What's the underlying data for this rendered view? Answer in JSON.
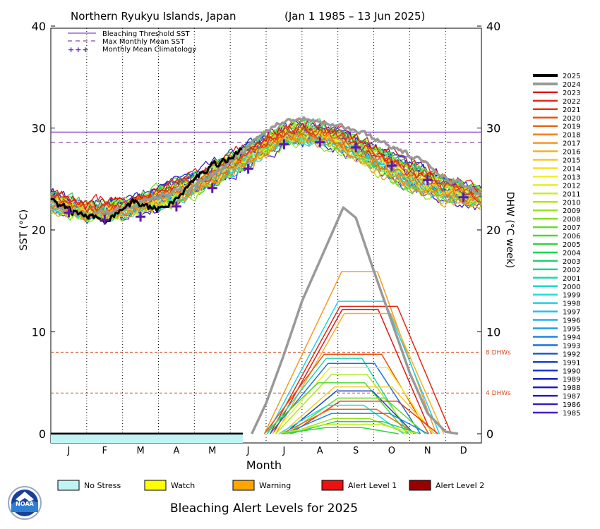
{
  "header": {
    "location": "Northern Ryukyu Islands, Japan",
    "range": "(Jan 1 1985 – 13 Jun 2025)"
  },
  "legend_top": {
    "threshold": "Bleaching Threshold SST",
    "mmm": "Max Monthly Mean SST",
    "climatology": "Monthly Mean Climatology",
    "climatology_symbol": "+++"
  },
  "year_legend": [
    "2025",
    "2024",
    "2023",
    "2022",
    "2021",
    "2020",
    "2019",
    "2018",
    "2017",
    "2016",
    "2015",
    "2014",
    "2013",
    "2012",
    "2011",
    "2010",
    "2009",
    "2008",
    "2007",
    "2006",
    "2005",
    "2004",
    "2003",
    "2002",
    "2001",
    "2000",
    "1999",
    "1998",
    "1997",
    "1996",
    "1995",
    "1994",
    "1993",
    "1992",
    "1991",
    "1990",
    "1989",
    "1988",
    "1987",
    "1986",
    "1985"
  ],
  "year_colors": [
    "#000000",
    "#999999",
    "#dd1a1a",
    "#e02a14",
    "#e43a12",
    "#e85010",
    "#ec6a10",
    "#f08018",
    "#f39a20",
    "#f5b020",
    "#f6c820",
    "#f6e020",
    "#f2ee20",
    "#e2f020",
    "#c8ec20",
    "#b0e820",
    "#98e420",
    "#80e020",
    "#66dc28",
    "#4cd834",
    "#34d440",
    "#22d050",
    "#20d070",
    "#20d090",
    "#20d4b0",
    "#20d8c8",
    "#20dce0",
    "#20d0ec",
    "#20c0f0",
    "#20b0f0",
    "#1aa0ee",
    "#1a88e8",
    "#1a70e0",
    "#1a58d8",
    "#1a44d0",
    "#1a34c8",
    "#1a24c4",
    "#1a1ac0",
    "#2a1ac0",
    "#3a1ac0",
    "#4a1ac4"
  ],
  "status_legend": [
    {
      "label": "No Stress",
      "color": "#c0f4f4"
    },
    {
      "label": "Watch",
      "color": "#ffff00"
    },
    {
      "label": "Warning",
      "color": "#ffa500"
    },
    {
      "label": "Alert Level 1",
      "color": "#ee1111"
    },
    {
      "label": "Alert Level 2",
      "color": "#990000"
    }
  ],
  "footer": {
    "title": "Bleaching Alert Levels for 2025",
    "logo_text": "NOAA"
  },
  "chart_data": {
    "type": "line",
    "xlabel": "Month",
    "ylabel_left": "SST (°C)",
    "ylabel_right": "DHW (°C week)",
    "months": [
      "J",
      "F",
      "M",
      "A",
      "M",
      "J",
      "J",
      "A",
      "S",
      "O",
      "N",
      "D"
    ],
    "ylim": [
      0,
      40
    ],
    "yticks": [
      0,
      10,
      20,
      30,
      40
    ],
    "threshold_sst": 29.6,
    "mmm_sst": 28.6,
    "dhw_reference_lines": [
      {
        "value": 8,
        "label": "8 DHWs"
      },
      {
        "value": 4,
        "label": "4 DHWs"
      }
    ],
    "climatology": {
      "x": [
        0.5,
        1.5,
        2.5,
        3.5,
        4.5,
        5.5,
        6.5,
        7.5,
        8.5,
        9.5,
        10.5,
        11.5
      ],
      "y": [
        21.7,
        21.0,
        21.3,
        22.3,
        24.1,
        26.0,
        28.4,
        28.6,
        28.1,
        26.3,
        24.9,
        23.2
      ]
    },
    "sst_2025": {
      "x": [
        0,
        0.3,
        0.6,
        0.9,
        1.2,
        1.5,
        1.8,
        2.1,
        2.4,
        2.7,
        3.0,
        3.3,
        3.6,
        3.9,
        4.2,
        4.5,
        4.8,
        5.1,
        5.35
      ],
      "y": [
        22.9,
        22.3,
        21.8,
        21.5,
        21.2,
        21.1,
        21.6,
        22.4,
        22.8,
        22.2,
        22.1,
        22.6,
        23.3,
        24.5,
        25.6,
        26.4,
        26.8,
        27.2,
        28.2
      ]
    },
    "sst_2024": {
      "x": [
        0,
        1,
        2,
        3,
        4,
        5,
        6,
        6.5,
        7,
        7.5,
        8,
        8.5,
        9,
        9.5,
        10,
        10.5,
        11,
        12
      ],
      "y": [
        22.7,
        21.6,
        22.0,
        23.2,
        24.4,
        26.6,
        29.8,
        30.8,
        31.0,
        30.9,
        30.3,
        29.7,
        29.0,
        28.3,
        27.3,
        26.3,
        25.3,
        23.5
      ]
    },
    "sst_envelope": {
      "x": [
        0,
        1,
        2,
        3,
        4,
        5,
        6,
        6.5,
        7,
        7.5,
        8,
        8.5,
        9,
        9.5,
        10,
        10.5,
        11,
        12
      ],
      "y_min": [
        21.5,
        20.8,
        20.9,
        21.6,
        23.0,
        24.8,
        27.0,
        28.2,
        28.3,
        28.2,
        27.6,
        26.6,
        25.4,
        24.3,
        23.3,
        22.8,
        22.3,
        22.0
      ],
      "y_max": [
        24.2,
        23.0,
        23.4,
        24.6,
        25.9,
        27.9,
        29.7,
        30.5,
        30.9,
        30.6,
        30.1,
        29.6,
        28.9,
        28.2,
        27.3,
        26.6,
        25.6,
        24.3
      ]
    },
    "dhw_2025": {
      "x": [
        0,
        5.35
      ],
      "y": [
        0,
        0
      ]
    },
    "dhw_2024": {
      "x": [
        5.6,
        6.0,
        6.5,
        7.0,
        7.5,
        8.0,
        8.15,
        8.5,
        9.0,
        9.5,
        10.0,
        10.5,
        11.0,
        11.35
      ],
      "y": [
        0,
        3.0,
        7.8,
        13.0,
        17.0,
        21.0,
        22.2,
        21.2,
        16.0,
        11.0,
        6.0,
        2.0,
        0.2,
        0
      ]
    },
    "dhw_other_years": [
      {
        "year": "2017",
        "peak": 15.9
      },
      {
        "year": "1998",
        "peak": 13.0
      },
      {
        "year": "2022",
        "peak": 12.5
      },
      {
        "year": "2023",
        "peak": 12.2
      },
      {
        "year": "2016",
        "peak": 11.8
      },
      {
        "year": "2020",
        "peak": 7.8
      },
      {
        "year": "2001",
        "peak": 7.4
      },
      {
        "year": "1993",
        "peak": 6.9
      },
      {
        "year": "2013",
        "peak": 6.5
      },
      {
        "year": "2010",
        "peak": 5.8
      },
      {
        "year": "2006",
        "peak": 5.0
      },
      {
        "year": "2015",
        "peak": 4.6
      },
      {
        "year": "1991",
        "peak": 4.2
      },
      {
        "year": "2007",
        "peak": 3.5
      },
      {
        "year": "2021",
        "peak": 3.2
      },
      {
        "year": "1999",
        "peak": 2.8
      },
      {
        "year": "2019",
        "peak": 2.4
      },
      {
        "year": "1994",
        "peak": 2.0
      },
      {
        "year": "2009",
        "peak": 1.5
      },
      {
        "year": "2003",
        "peak": 1.2
      },
      {
        "year": "2011",
        "peak": 0.9
      },
      {
        "year": "2005",
        "peak": 0.6
      }
    ],
    "status_2025": {
      "level": "No Stress",
      "x": [
        0,
        5.35
      ]
    }
  }
}
